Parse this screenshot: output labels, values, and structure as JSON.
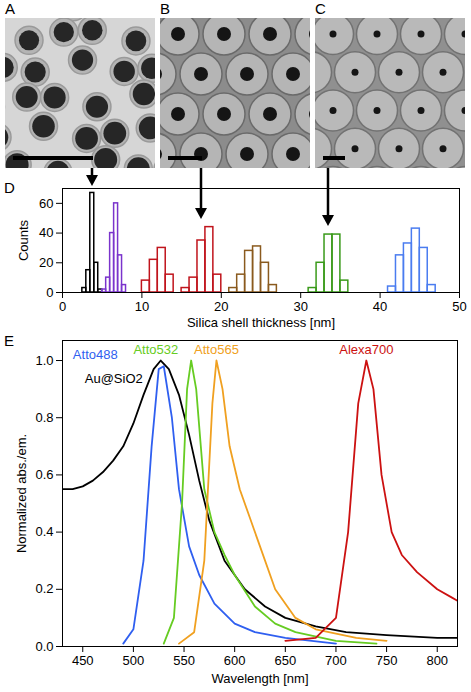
{
  "images": [
    {
      "label": "A"
    },
    {
      "label": "B"
    },
    {
      "label": "C"
    }
  ],
  "chart_data": [
    {
      "label": "D",
      "type": "histogram",
      "x_label": "Silica shell thickness [nm]",
      "y_label": "Counts",
      "xlim": [
        0,
        50
      ],
      "xticks": [
        0,
        10,
        20,
        30,
        40,
        50
      ],
      "ylim": [
        0,
        70
      ],
      "yticks": [
        0,
        20,
        40,
        60
      ],
      "series": [
        {
          "color": "#000000",
          "bins": [
            2.5,
            3,
            3.5,
            4,
            4.5,
            5
          ],
          "counts": [
            3,
            15,
            67,
            20,
            2
          ]
        },
        {
          "color": "#7a33cc",
          "bins": [
            5,
            5.5,
            6,
            6.5,
            7,
            7.5,
            8
          ],
          "counts": [
            2,
            10,
            40,
            60,
            25,
            5
          ]
        },
        {
          "color": "#c0141c",
          "bins": [
            10,
            11,
            12,
            13,
            14
          ],
          "counts": [
            8,
            22,
            30,
            12
          ]
        },
        {
          "color": "#c0141c",
          "bins": [
            15,
            16,
            17,
            18,
            19,
            20
          ],
          "counts": [
            3,
            10,
            35,
            44,
            12
          ]
        },
        {
          "color": "#8a5a1e",
          "bins": [
            21,
            22,
            23,
            24,
            25,
            26,
            27
          ],
          "counts": [
            3,
            12,
            28,
            31,
            20,
            5
          ]
        },
        {
          "color": "#3a9a1a",
          "bins": [
            31,
            32,
            33,
            34,
            35,
            36
          ],
          "counts": [
            3,
            20,
            39,
            39,
            8
          ]
        },
        {
          "color": "#4a7cf0",
          "bins": [
            41,
            42,
            43,
            44,
            45,
            46,
            47
          ],
          "counts": [
            4,
            25,
            33,
            43,
            30,
            5
          ]
        }
      ]
    },
    {
      "label": "E",
      "type": "line",
      "x_label": "Wavelength [nm]",
      "y_label": "Normalized abs./em.",
      "xlim": [
        430,
        820
      ],
      "xticks": [
        450,
        500,
        550,
        600,
        650,
        700,
        750,
        800
      ],
      "ylim": [
        0,
        1.07
      ],
      "yticks": [
        {
          "value": 0,
          "label": "0.0"
        },
        0.2,
        0.4,
        0.6,
        0.8,
        {
          "value": 1,
          "label": "1.0"
        }
      ],
      "series": [
        {
          "name": "Au@SiO2",
          "color": "#000000",
          "x": [
            430,
            440,
            450,
            460,
            470,
            480,
            490,
            500,
            510,
            520,
            527,
            535,
            545,
            555,
            565,
            575,
            590,
            610,
            630,
            650,
            680,
            710,
            750,
            800,
            820
          ],
          "values": [
            0.55,
            0.55,
            0.56,
            0.58,
            0.61,
            0.65,
            0.7,
            0.78,
            0.88,
            0.97,
            1.0,
            0.97,
            0.88,
            0.74,
            0.58,
            0.44,
            0.3,
            0.2,
            0.14,
            0.1,
            0.07,
            0.05,
            0.04,
            0.03,
            0.03
          ]
        },
        {
          "name": "Atto488",
          "color": "#2f5ff0",
          "x": [
            490,
            500,
            510,
            518,
            525,
            530,
            538,
            545,
            555,
            565,
            580,
            600,
            620,
            650,
            700
          ],
          "values": [
            0.01,
            0.06,
            0.3,
            0.7,
            0.97,
            0.98,
            0.8,
            0.55,
            0.35,
            0.25,
            0.15,
            0.08,
            0.05,
            0.03,
            0.01
          ]
        },
        {
          "name": "Atto532",
          "color": "#66cc22",
          "x": [
            530,
            540,
            548,
            553,
            557,
            562,
            570,
            580,
            590,
            600,
            620,
            640,
            660,
            700,
            740
          ],
          "values": [
            0.01,
            0.1,
            0.5,
            0.9,
            1.0,
            0.9,
            0.55,
            0.4,
            0.32,
            0.25,
            0.14,
            0.08,
            0.05,
            0.02,
            0.01
          ]
        },
        {
          "name": "Atto565",
          "color": "#f0a020",
          "x": [
            545,
            560,
            570,
            578,
            582,
            588,
            595,
            605,
            615,
            625,
            640,
            660,
            680,
            720,
            750
          ],
          "values": [
            0.01,
            0.05,
            0.3,
            0.85,
            1.0,
            0.9,
            0.7,
            0.55,
            0.45,
            0.35,
            0.2,
            0.1,
            0.06,
            0.03,
            0.02
          ]
        },
        {
          "name": "Alexa700",
          "color": "#cc1111",
          "x": [
            650,
            680,
            700,
            712,
            722,
            730,
            737,
            745,
            755,
            765,
            780,
            800,
            815,
            820
          ],
          "values": [
            0.02,
            0.03,
            0.1,
            0.4,
            0.85,
            1.0,
            0.9,
            0.6,
            0.4,
            0.32,
            0.26,
            0.2,
            0.17,
            0.16
          ]
        }
      ]
    }
  ]
}
